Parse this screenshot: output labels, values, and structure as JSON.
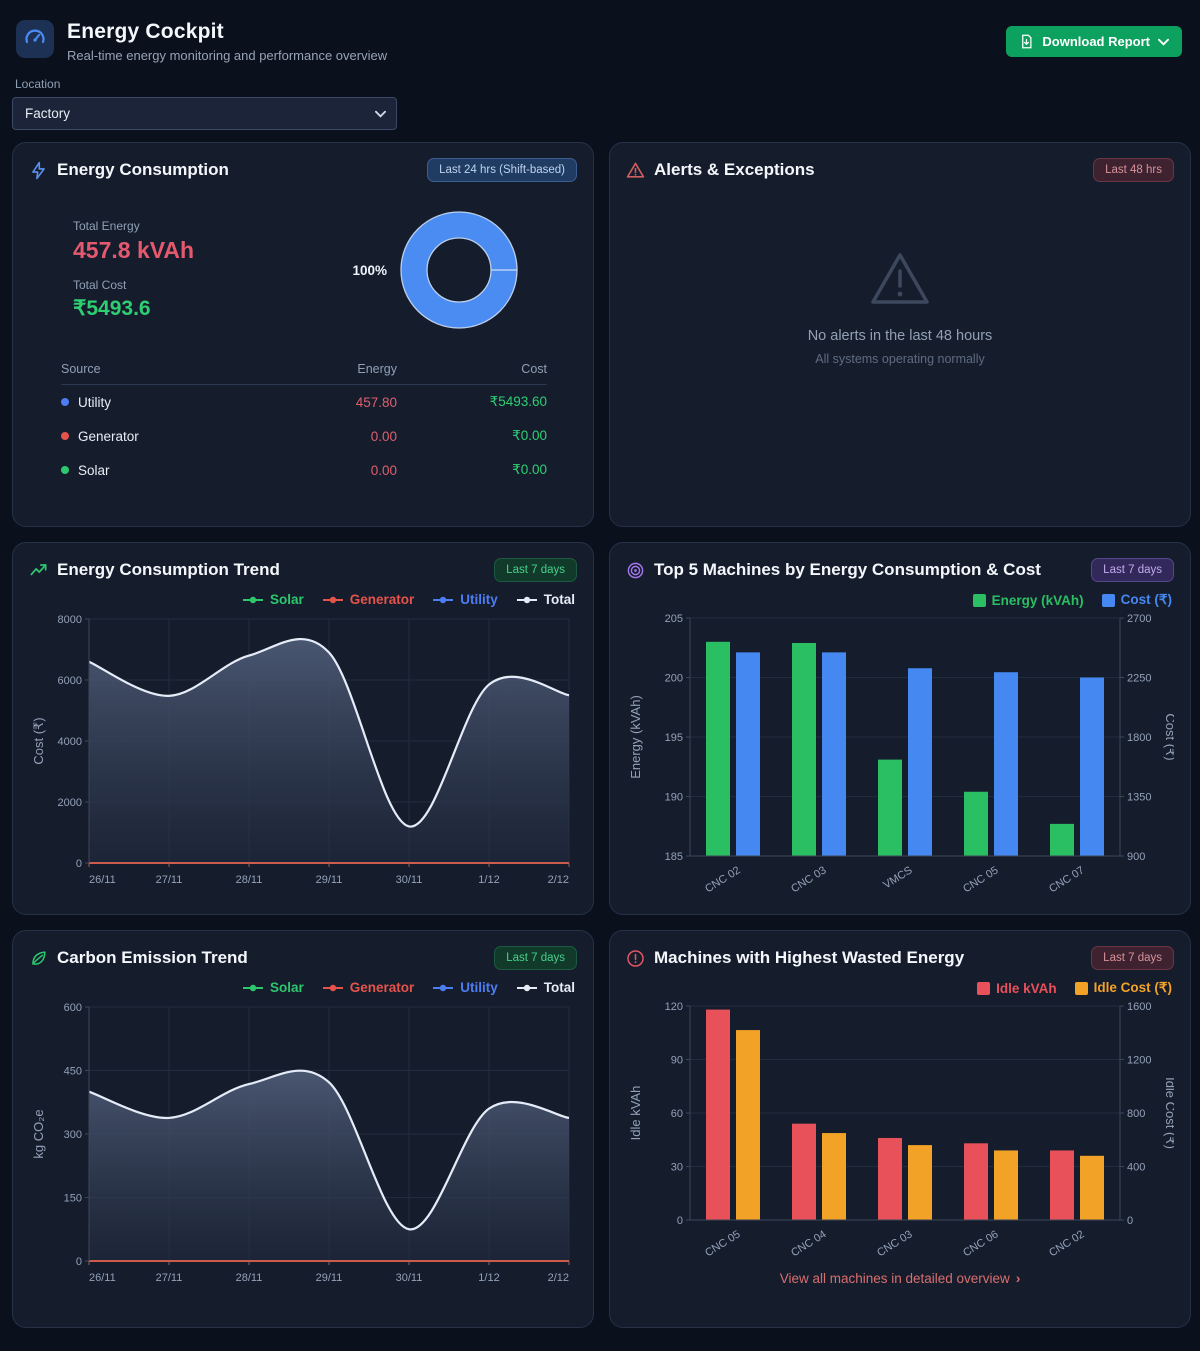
{
  "header": {
    "title": "Energy Cockpit",
    "subtitle": "Real-time energy monitoring and performance overview",
    "download_button": "Download Report",
    "location_label": "Location",
    "location_value": "Factory"
  },
  "colors": {
    "solar": "#2dc76d",
    "generator": "#e5534b",
    "utility": "#4d7df2",
    "total": "#e6ecf6",
    "bar_green": "#2abf62",
    "bar_blue": "#4688f1",
    "bar_red": "#e8515a",
    "bar_orange": "#f2a227",
    "donut_blue": "#4a8cf2",
    "accent_green": "#0da15f"
  },
  "panels": {
    "energy_consumption": {
      "title": "Energy Consumption",
      "badge": "Last 24 hrs (Shift-based)",
      "total_energy_label": "Total Energy",
      "total_energy_value": "457.8 kVAh",
      "total_cost_label": "Total Cost",
      "total_cost_value": "₹5493.6",
      "donut_label": "100%",
      "table": {
        "headers": [
          "Source",
          "Energy",
          "Cost"
        ],
        "rows": [
          {
            "source": "Utility",
            "energy": "457.80",
            "cost": "₹5493.60"
          },
          {
            "source": "Generator",
            "energy": "0.00",
            "cost": "₹0.00"
          },
          {
            "source": "Solar",
            "energy": "0.00",
            "cost": "₹0.00"
          }
        ]
      }
    },
    "alerts": {
      "title": "Alerts & Exceptions",
      "badge": "Last 48 hrs",
      "empty_title": "No alerts in the last 48 hours",
      "empty_subtitle": "All systems operating normally"
    },
    "energy_trend": {
      "title": "Energy Consumption Trend",
      "badge": "Last 7 days"
    },
    "top5": {
      "title": "Top 5 Machines by Energy Consumption & Cost",
      "badge": "Last 7 days"
    },
    "carbon_trend": {
      "title": "Carbon Emission Trend",
      "badge": "Last 7 days"
    },
    "wasted": {
      "title": "Machines with Highest Wasted Energy",
      "badge": "Last 7 days",
      "footer_link": "View all machines in detailed overview"
    }
  },
  "chart_data": [
    {
      "id": "source-donut",
      "type": "pie",
      "labels": [
        "Utility",
        "Generator",
        "Solar"
      ],
      "values": [
        100,
        0,
        0
      ],
      "center_label": "100%"
    },
    {
      "id": "energy-trend",
      "type": "area",
      "x": [
        "26/11",
        "27/11",
        "28/11",
        "29/11",
        "30/11",
        "1/12",
        "2/12"
      ],
      "ylabel": "Cost (₹)",
      "ylim": [
        0,
        8000
      ],
      "yticks": [
        0,
        2000,
        4000,
        6000,
        8000
      ],
      "legend": [
        {
          "name": "Solar",
          "color": "#2dc76d"
        },
        {
          "name": "Generator",
          "color": "#e5534b"
        },
        {
          "name": "Utility",
          "color": "#4d7df2"
        },
        {
          "name": "Total",
          "color": "#e6ecf6"
        }
      ],
      "series": [
        {
          "name": "Solar",
          "color": "#2dc76d",
          "values": [
            0,
            0,
            0,
            0,
            0,
            0,
            0
          ]
        },
        {
          "name": "Generator",
          "color": "#e5534b",
          "values": [
            0,
            0,
            0,
            0,
            0,
            0,
            0
          ]
        },
        {
          "name": "Utility",
          "color": "#4d7df2",
          "values": [
            6600,
            5480,
            6800,
            6900,
            1200,
            5850,
            5500
          ]
        },
        {
          "name": "Total",
          "color": "#e6ecf6",
          "values": [
            6600,
            5480,
            6800,
            6900,
            1200,
            5850,
            5500
          ],
          "area": true
        }
      ]
    },
    {
      "id": "top5",
      "type": "bar",
      "categories": [
        "CNC 02",
        "CNC 03",
        "VMCS",
        "CNC 05",
        "CNC 07"
      ],
      "left_axis": {
        "label": "Energy (kVAh)",
        "min": 185,
        "max": 205,
        "ticks": [
          185,
          190,
          195,
          200,
          205
        ]
      },
      "right_axis": {
        "label": "Cost (₹)",
        "min": 900,
        "max": 2700,
        "ticks": [
          900,
          1350,
          1800,
          2250,
          2700
        ]
      },
      "series": [
        {
          "name": "Energy (kVAh)",
          "axis": "left",
          "color": "#2abf62",
          "values": [
            203.0,
            202.9,
            193.1,
            190.4,
            187.7
          ]
        },
        {
          "name": "Cost (₹)",
          "axis": "right",
          "color": "#4688f1",
          "values": [
            2440,
            2440,
            2320,
            2290,
            2250
          ]
        }
      ]
    },
    {
      "id": "carbon-trend",
      "type": "area",
      "x": [
        "26/11",
        "27/11",
        "28/11",
        "29/11",
        "30/11",
        "1/12",
        "2/12"
      ],
      "ylabel": "kg CO₂e",
      "ylim": [
        0,
        600
      ],
      "yticks": [
        0,
        150,
        300,
        450,
        600
      ],
      "legend": [
        {
          "name": "Solar",
          "color": "#2dc76d"
        },
        {
          "name": "Generator",
          "color": "#e5534b"
        },
        {
          "name": "Utility",
          "color": "#4d7df2"
        },
        {
          "name": "Total",
          "color": "#e6ecf6"
        }
      ],
      "series": [
        {
          "name": "Solar",
          "color": "#2dc76d",
          "values": [
            0,
            0,
            0,
            0,
            0,
            0,
            0
          ]
        },
        {
          "name": "Generator",
          "color": "#e5534b",
          "values": [
            0,
            0,
            0,
            0,
            0,
            0,
            0
          ]
        },
        {
          "name": "Utility",
          "color": "#4d7df2",
          "values": [
            400,
            338,
            418,
            422,
            75,
            360,
            338
          ]
        },
        {
          "name": "Total",
          "color": "#e6ecf6",
          "values": [
            400,
            338,
            418,
            422,
            75,
            360,
            338
          ],
          "area": true
        }
      ]
    },
    {
      "id": "wasted",
      "type": "bar",
      "categories": [
        "CNC 05",
        "CNC 04",
        "CNC 03",
        "CNC 06",
        "CNC 02"
      ],
      "left_axis": {
        "label": "Idle kVAh",
        "min": 0,
        "max": 120,
        "ticks": [
          0,
          30,
          60,
          90,
          120
        ]
      },
      "right_axis": {
        "label": "Idle Cost (₹)",
        "min": 0,
        "max": 1600,
        "ticks": [
          0,
          400,
          800,
          1200,
          1600
        ]
      },
      "series": [
        {
          "name": "Idle kVAh",
          "axis": "left",
          "color": "#e8515a",
          "values": [
            118,
            54,
            46,
            43,
            39
          ]
        },
        {
          "name": "Idle Cost (₹)",
          "axis": "right",
          "color": "#f2a227",
          "values": [
            1420,
            650,
            560,
            520,
            480
          ]
        }
      ]
    }
  ]
}
